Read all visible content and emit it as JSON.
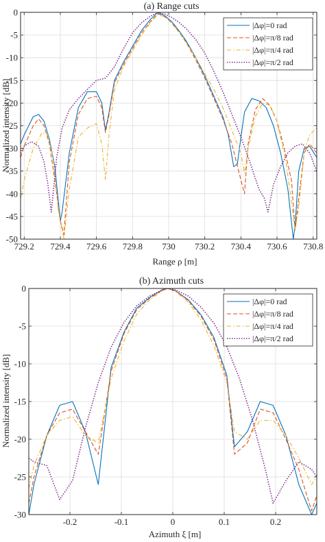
{
  "chart_data": [
    {
      "type": "line",
      "title": "(a) Range cuts",
      "xlabel": "Range ρ [m]",
      "ylabel": "Normalized intensity [dB]",
      "xlim": [
        729.18,
        730.82
      ],
      "ylim": [
        -50,
        0
      ],
      "xticks": [
        729.2,
        729.4,
        729.6,
        729.8,
        730,
        730.2,
        730.4,
        730.6,
        730.8
      ],
      "xtick_labels": [
        "729.2",
        "729.4",
        "729.6",
        "729.8",
        "730",
        "730.2",
        "730.4",
        "730.6",
        "730.8"
      ],
      "yticks": [
        0,
        -5,
        -10,
        -15,
        -20,
        -25,
        -30,
        -35,
        -40,
        -45,
        -50
      ],
      "ytick_labels": [
        "0",
        "-5",
        "-10",
        "-15",
        "-20",
        "-25",
        "-30",
        "-35",
        "-40",
        "-45",
        "-50"
      ],
      "grid": true,
      "legend_position": "top-right",
      "series": [
        {
          "name": "|Δφ|=0 rad",
          "color": "#0072BD",
          "dash": "solid",
          "x": [
            729.18,
            729.2,
            729.25,
            729.28,
            729.31,
            729.34,
            729.37,
            729.4,
            729.41,
            729.45,
            729.5,
            729.55,
            729.6,
            729.63,
            729.65,
            729.67,
            729.7,
            729.75,
            729.8,
            729.85,
            729.9,
            729.94,
            729.98,
            730.02,
            730.06,
            730.1,
            730.15,
            730.2,
            730.25,
            730.3,
            730.33,
            730.36,
            730.38,
            730.4,
            730.42,
            730.46,
            730.5,
            730.54,
            730.58,
            730.62,
            730.66,
            730.69,
            730.7,
            730.72,
            730.75,
            730.78,
            730.82
          ],
          "y": [
            -29,
            -27,
            -23,
            -22.5,
            -24,
            -28,
            -34,
            -46,
            -44,
            -31,
            -21,
            -17.5,
            -17.5,
            -20,
            -26,
            -22,
            -15,
            -11,
            -7.5,
            -4,
            -1.5,
            0,
            -0.8,
            -2.2,
            -4.2,
            -6.5,
            -10,
            -14,
            -18.5,
            -23,
            -27,
            -34,
            -33.5,
            -27.5,
            -22,
            -19,
            -19.5,
            -21,
            -25,
            -31,
            -39,
            -50,
            -47,
            -35,
            -30,
            -29.5,
            -32
          ]
        },
        {
          "name": "|Δφ|=π/8 rad",
          "color": "#D95319",
          "dash": "dashed",
          "x": [
            729.18,
            729.2,
            729.25,
            729.28,
            729.31,
            729.34,
            729.37,
            729.4,
            729.42,
            729.45,
            729.5,
            729.55,
            729.6,
            729.63,
            729.65,
            729.67,
            729.7,
            729.75,
            729.8,
            729.85,
            729.9,
            729.94,
            729.98,
            730.02,
            730.06,
            730.1,
            730.15,
            730.2,
            730.25,
            730.3,
            730.35,
            730.4,
            730.42,
            730.44,
            730.48,
            730.52,
            730.56,
            730.6,
            730.64,
            730.68,
            730.7,
            730.72,
            730.75,
            730.78,
            730.82
          ],
          "y": [
            -32,
            -29.5,
            -25,
            -23.5,
            -25,
            -29,
            -37,
            -46,
            -49,
            -33,
            -22.5,
            -19,
            -18.5,
            -21,
            -26.5,
            -22.5,
            -15.5,
            -11.5,
            -8,
            -4.5,
            -2,
            -0.3,
            -1,
            -2.5,
            -4.5,
            -6.8,
            -10.5,
            -14.5,
            -19,
            -23.5,
            -29,
            -37,
            -40,
            -29,
            -21.5,
            -19,
            -20.5,
            -24,
            -30,
            -37,
            -48,
            -41,
            -31,
            -29,
            -31
          ]
        },
        {
          "name": "|Δφ|=π/4 rad",
          "color": "#EDB120",
          "dash": "dashdot",
          "x": [
            729.18,
            729.2,
            729.25,
            729.3,
            729.33,
            729.36,
            729.39,
            729.42,
            729.45,
            729.5,
            729.55,
            729.6,
            729.63,
            729.65,
            729.67,
            729.7,
            729.75,
            729.8,
            729.85,
            729.9,
            729.94,
            729.98,
            730.02,
            730.06,
            730.1,
            730.15,
            730.2,
            730.25,
            730.3,
            730.35,
            730.4,
            730.42,
            730.44,
            730.48,
            730.52,
            730.56,
            730.6,
            730.65,
            730.7,
            730.72,
            730.75,
            730.78,
            730.82
          ],
          "y": [
            -41,
            -37,
            -30,
            -26.5,
            -27,
            -32,
            -44,
            -50,
            -39,
            -27.5,
            -25.5,
            -24.5,
            -29,
            -37,
            -27,
            -17,
            -12,
            -8.5,
            -5,
            -2.2,
            -0.5,
            -1,
            -2.5,
            -4.5,
            -6.8,
            -10,
            -13.5,
            -17,
            -21,
            -26,
            -31,
            -35.5,
            -30,
            -23,
            -20,
            -20.5,
            -24,
            -33,
            -48,
            -43,
            -31,
            -27,
            -25.5
          ]
        },
        {
          "name": "|Δφ|=π/2 rad",
          "color": "#7E2F8E",
          "dash": "dotted",
          "x": [
            729.18,
            729.2,
            729.24,
            729.28,
            729.31,
            729.33,
            729.35,
            729.38,
            729.41,
            729.45,
            729.5,
            729.55,
            729.6,
            729.65,
            729.7,
            729.75,
            729.8,
            729.85,
            729.9,
            729.94,
            729.98,
            730.02,
            730.06,
            730.1,
            730.15,
            730.2,
            730.25,
            730.3,
            730.35,
            730.4,
            730.45,
            730.5,
            730.53,
            730.55,
            730.58,
            730.62,
            730.66,
            730.7,
            730.74,
            730.78,
            730.82
          ],
          "y": [
            -31,
            -29.5,
            -28.5,
            -29.5,
            -33,
            -37.5,
            -44,
            -32,
            -25.5,
            -21.5,
            -19,
            -17,
            -15,
            -14.5,
            -12,
            -8,
            -4.5,
            -2.3,
            -0.8,
            -0.1,
            -0.4,
            -1.2,
            -2.3,
            -3.7,
            -6,
            -9,
            -13,
            -17.5,
            -22.5,
            -27.5,
            -33,
            -39,
            -41,
            -44,
            -38,
            -34,
            -31,
            -29.5,
            -29,
            -31,
            -35
          ]
        }
      ]
    },
    {
      "type": "line",
      "title": "(b) Azimuth cuts",
      "xlabel": "Azimuth ξ [m]",
      "ylabel": "Normalized intensity [dB]",
      "xlim": [
        -0.28,
        0.28
      ],
      "ylim": [
        -30,
        0
      ],
      "xticks": [
        -0.2,
        -0.1,
        0,
        0.1,
        0.2
      ],
      "xtick_labels": [
        "-0.2",
        "-0.1",
        "0",
        "0.1",
        "0.2"
      ],
      "yticks": [
        0,
        -5,
        -10,
        -15,
        -20,
        -25,
        -30
      ],
      "ytick_labels": [
        "0",
        "-5",
        "-10",
        "-15",
        "-20",
        "-25",
        "-30"
      ],
      "grid": true,
      "legend_position": "top-right",
      "series": [
        {
          "name": "|Δφ|=0 rad",
          "color": "#0072BD",
          "dash": "solid",
          "x": [
            -0.28,
            -0.27,
            -0.245,
            -0.22,
            -0.195,
            -0.17,
            -0.145,
            -0.12,
            -0.095,
            -0.07,
            -0.045,
            -0.02,
            -0.01,
            0.005,
            0.03,
            0.055,
            0.08,
            0.105,
            0.115,
            0.12,
            0.145,
            0.17,
            0.195,
            0.22,
            0.245,
            0.27,
            0.28
          ],
          "y": [
            -30,
            -26,
            -19.5,
            -15.5,
            -15,
            -19,
            -26,
            -10.5,
            -5.8,
            -2.6,
            -1.2,
            -0.15,
            0,
            -0.3,
            -1.5,
            -3.5,
            -6.5,
            -11.5,
            -18,
            -21,
            -19,
            -15,
            -15.5,
            -19.5,
            -26,
            -30,
            -28.5
          ]
        },
        {
          "name": "|Δφ|=π/8 rad",
          "color": "#D95319",
          "dash": "dashed",
          "x": [
            -0.28,
            -0.27,
            -0.245,
            -0.22,
            -0.195,
            -0.17,
            -0.145,
            -0.12,
            -0.095,
            -0.07,
            -0.045,
            -0.02,
            -0.01,
            0.005,
            0.03,
            0.055,
            0.08,
            0.105,
            0.12,
            0.145,
            0.17,
            0.195,
            0.22,
            0.245,
            0.27,
            0.28
          ],
          "y": [
            -28.5,
            -25,
            -19.5,
            -16.5,
            -16,
            -19,
            -22,
            -11,
            -6,
            -2.8,
            -1.3,
            -0.2,
            0,
            -0.3,
            -1.6,
            -3.7,
            -6.8,
            -12,
            -22,
            -20.5,
            -16,
            -16.5,
            -20,
            -24,
            -29.5,
            -27.5
          ]
        },
        {
          "name": "|Δφ|=π/4 rad",
          "color": "#EDB120",
          "dash": "dashdot",
          "x": [
            -0.28,
            -0.27,
            -0.245,
            -0.22,
            -0.195,
            -0.17,
            -0.145,
            -0.12,
            -0.095,
            -0.07,
            -0.045,
            -0.02,
            -0.01,
            0.005,
            0.03,
            0.055,
            0.08,
            0.105,
            0.12,
            0.145,
            0.17,
            0.195,
            0.22,
            0.245,
            0.27,
            0.28
          ],
          "y": [
            -26.5,
            -23.5,
            -19.5,
            -17.5,
            -17,
            -19.5,
            -20.5,
            -12,
            -7,
            -3.4,
            -1.5,
            -0.3,
            0,
            -0.4,
            -1.8,
            -4.2,
            -7.6,
            -12.5,
            -19,
            -20,
            -17.5,
            -17.5,
            -19.5,
            -22.5,
            -26,
            -25
          ]
        },
        {
          "name": "|Δφ|=π/2 rad",
          "color": "#7E2F8E",
          "dash": "dotted",
          "x": [
            -0.28,
            -0.27,
            -0.245,
            -0.22,
            -0.195,
            -0.17,
            -0.145,
            -0.12,
            -0.095,
            -0.07,
            -0.045,
            -0.02,
            -0.01,
            0.005,
            0.03,
            0.055,
            0.08,
            0.105,
            0.13,
            0.155,
            0.18,
            0.195,
            0.22,
            0.245,
            0.27,
            0.28
          ],
          "y": [
            -22.5,
            -23,
            -23.5,
            -28,
            -25.5,
            -18.5,
            -12.5,
            -7.8,
            -4.5,
            -2.3,
            -1,
            -0.2,
            0,
            -0.2,
            -1,
            -2.5,
            -4.6,
            -7.7,
            -12,
            -17.5,
            -24,
            -28.5,
            -25.5,
            -23,
            -24,
            -25
          ]
        }
      ]
    }
  ]
}
